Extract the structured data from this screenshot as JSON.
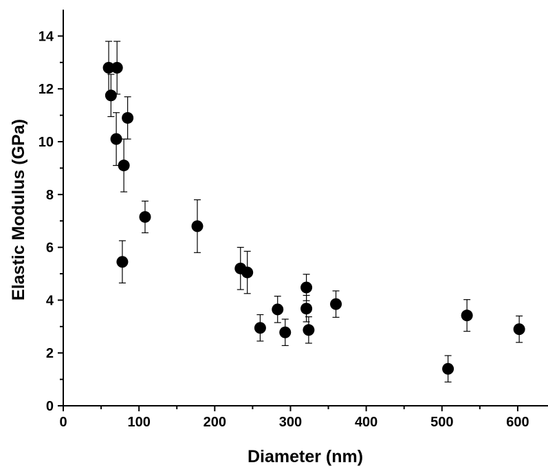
{
  "chart_data": {
    "type": "scatter",
    "xlabel": "Diameter (nm)",
    "ylabel": "Elastic Modulus (GPa)",
    "xlim": [
      0,
      640
    ],
    "ylim": [
      0,
      15
    ],
    "x_ticks": [
      "0",
      "100",
      "200",
      "300",
      "400",
      "500",
      "600"
    ],
    "y_ticks": [
      "0",
      "2",
      "4",
      "6",
      "8",
      "10",
      "12",
      "14"
    ],
    "grid": false,
    "marker_color": "#000000",
    "points": [
      {
        "x": 60,
        "y": 12.8,
        "err": 1.0
      },
      {
        "x": 71,
        "y": 12.8,
        "err": 1.0
      },
      {
        "x": 63,
        "y": 11.75,
        "err": 0.8
      },
      {
        "x": 85,
        "y": 10.9,
        "err": 0.8
      },
      {
        "x": 70,
        "y": 10.1,
        "err": 1.0
      },
      {
        "x": 80,
        "y": 9.1,
        "err": 1.0
      },
      {
        "x": 108,
        "y": 7.15,
        "err": 0.6
      },
      {
        "x": 78,
        "y": 5.45,
        "err": 0.8
      },
      {
        "x": 177,
        "y": 6.8,
        "err": 1.0
      },
      {
        "x": 234,
        "y": 5.2,
        "err": 0.8
      },
      {
        "x": 243,
        "y": 5.05,
        "err": 0.8
      },
      {
        "x": 260,
        "y": 2.95,
        "err": 0.5
      },
      {
        "x": 283,
        "y": 3.65,
        "err": 0.5
      },
      {
        "x": 293,
        "y": 2.78,
        "err": 0.5
      },
      {
        "x": 321,
        "y": 4.48,
        "err": 0.5
      },
      {
        "x": 321,
        "y": 3.68,
        "err": 0.5
      },
      {
        "x": 324,
        "y": 2.87,
        "err": 0.5
      },
      {
        "x": 360,
        "y": 3.85,
        "err": 0.5
      },
      {
        "x": 508,
        "y": 1.4,
        "err": 0.5
      },
      {
        "x": 533,
        "y": 3.42,
        "err": 0.6
      },
      {
        "x": 602,
        "y": 2.9,
        "err": 0.5
      }
    ]
  }
}
